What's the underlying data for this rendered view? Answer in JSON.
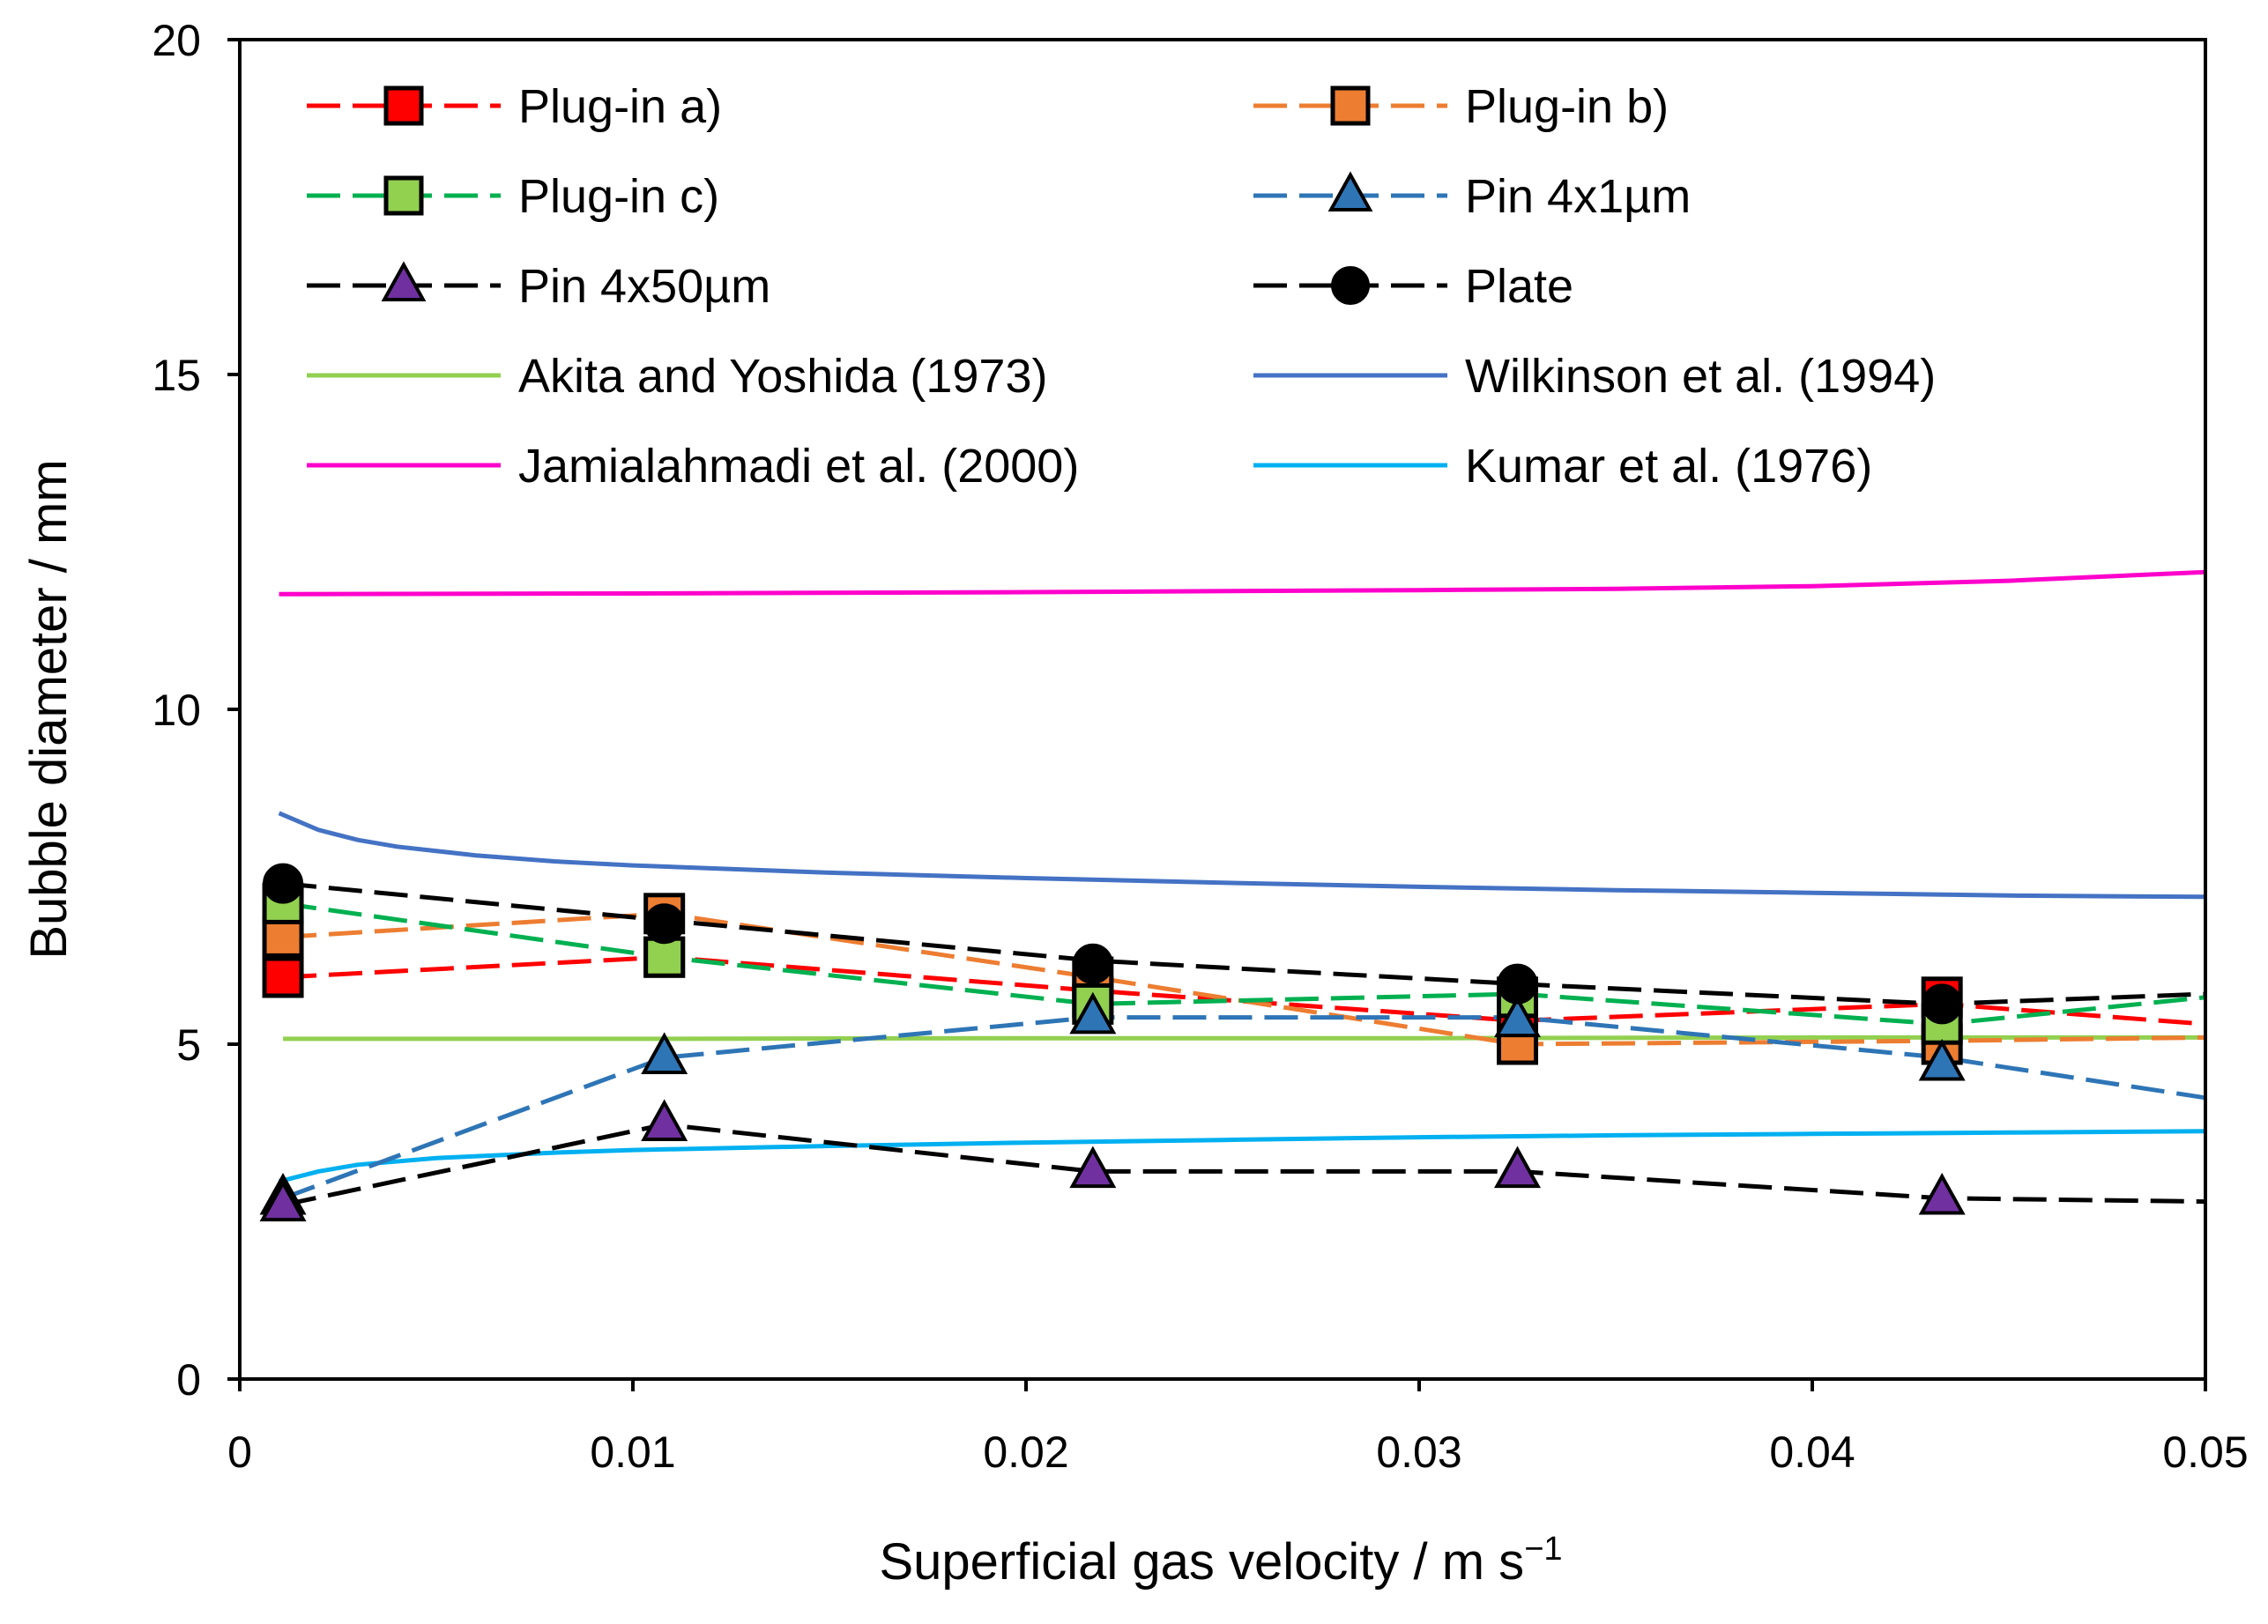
{
  "chart_data": {
    "type": "line",
    "title": "",
    "xlabel": "Superficial gas velocity / m s",
    "xlabel_sup": "−1",
    "ylabel": "Bubble diameter / mm",
    "xlim": [
      0,
      0.05
    ],
    "ylim": [
      0,
      20
    ],
    "xticks": [
      {
        "value": 0,
        "label": "0"
      },
      {
        "value": 0.01,
        "label": "0.01"
      },
      {
        "value": 0.02,
        "label": "0.02"
      },
      {
        "value": 0.03,
        "label": "0.03"
      },
      {
        "value": 0.04,
        "label": "0.04"
      },
      {
        "value": 0.05,
        "label": "0.05"
      }
    ],
    "yticks": [
      {
        "value": 0,
        "label": "0"
      },
      {
        "value": 5,
        "label": "5"
      },
      {
        "value": 10,
        "label": "10"
      },
      {
        "value": 15,
        "label": "15"
      },
      {
        "value": 20,
        "label": "20"
      }
    ],
    "grid": false,
    "legend_position": "top",
    "series": [
      {
        "name": "Plug-in a)",
        "kind": "marker-dashed",
        "marker": "square",
        "color": "#ff0000",
        "marker_fill": "#ff0000",
        "x": [
          0.0011,
          0.0108,
          0.0217,
          0.0325,
          0.0433
        ],
        "values": [
          6.0,
          6.3,
          5.7,
          5.3,
          5.7
        ],
        "line_x": [
          0.0011,
          0.0108,
          0.0217,
          0.0325,
          0.0433,
          0.05
        ],
        "line_values": [
          6.0,
          6.3,
          5.8,
          5.35,
          5.6,
          5.3
        ]
      },
      {
        "name": "Plug-in b)",
        "kind": "marker-dashed",
        "marker": "square",
        "color": "#ed7d31",
        "marker_fill": "#ed7d31",
        "x": [
          0.0011,
          0.0108,
          0.0217,
          0.0325,
          0.0433
        ],
        "values": [
          6.6,
          6.95,
          6.0,
          5.0,
          5.0
        ],
        "line_x": [
          0.0011,
          0.0108,
          0.0217,
          0.0325,
          0.0433,
          0.05
        ],
        "line_values": [
          6.6,
          6.95,
          6.0,
          5.0,
          5.05,
          5.1
        ]
      },
      {
        "name": "Plug-in c)",
        "kind": "marker-dashed",
        "marker": "square",
        "color": "#00b050",
        "marker_fill": "#92d050",
        "x": [
          0.0011,
          0.0108,
          0.0217,
          0.0325,
          0.0433
        ],
        "values": [
          7.1,
          6.3,
          5.6,
          5.7,
          5.3
        ],
        "line_x": [
          0.0011,
          0.0108,
          0.0217,
          0.0325,
          0.0433,
          0.05
        ],
        "line_values": [
          7.1,
          6.3,
          5.6,
          5.75,
          5.3,
          5.7
        ]
      },
      {
        "name": "Pin 4x1µm",
        "kind": "marker-dashed",
        "marker": "triangle",
        "color": "#2e75b6",
        "marker_fill": "#2e75b6",
        "x": [
          0.0011,
          0.0108,
          0.0217,
          0.0325,
          0.0433
        ],
        "values": [
          2.7,
          4.8,
          5.4,
          5.35,
          4.7
        ],
        "line_x": [
          0.0011,
          0.0108,
          0.0217,
          0.0325,
          0.0433,
          0.05
        ],
        "line_values": [
          2.7,
          4.8,
          5.4,
          5.4,
          4.8,
          4.2
        ]
      },
      {
        "name": "Pin 4x50µm",
        "kind": "marker-dashed",
        "marker": "triangle",
        "color": "#000000",
        "marker_fill": "#7030a0",
        "x": [
          0.0011,
          0.0108,
          0.0217,
          0.0325,
          0.0433
        ],
        "values": [
          2.6,
          3.8,
          3.1,
          3.1,
          2.7
        ],
        "line_x": [
          0.0011,
          0.0108,
          0.0217,
          0.0325,
          0.0433,
          0.05
        ],
        "line_values": [
          2.6,
          3.8,
          3.1,
          3.1,
          2.7,
          2.65
        ]
      },
      {
        "name": "Plate",
        "kind": "marker-dashed",
        "marker": "circle",
        "color": "#000000",
        "marker_fill": "#000000",
        "x": [
          0.0011,
          0.0108,
          0.0217,
          0.0325,
          0.0433
        ],
        "values": [
          7.4,
          6.8,
          6.2,
          5.9,
          5.6
        ],
        "line_x": [
          0.0011,
          0.0108,
          0.0217,
          0.0325,
          0.0433,
          0.05
        ],
        "line_values": [
          7.4,
          6.85,
          6.25,
          5.9,
          5.6,
          5.75
        ]
      },
      {
        "name": "Akita and Yoshida (1973)",
        "kind": "solid",
        "color": "#92d050",
        "x": [
          0.0011,
          0.01,
          0.02,
          0.03,
          0.04,
          0.05
        ],
        "values": [
          5.08,
          5.08,
          5.09,
          5.09,
          5.1,
          5.1
        ]
      },
      {
        "name": "Wilkinson et al. (1994)",
        "kind": "solid",
        "color": "#4472c4",
        "x": [
          0.001,
          0.002,
          0.003,
          0.004,
          0.006,
          0.008,
          0.01,
          0.015,
          0.02,
          0.025,
          0.03,
          0.035,
          0.04,
          0.045,
          0.05
        ],
        "values": [
          8.45,
          8.2,
          8.05,
          7.95,
          7.82,
          7.73,
          7.67,
          7.56,
          7.48,
          7.41,
          7.35,
          7.3,
          7.26,
          7.22,
          7.2
        ]
      },
      {
        "name": "Jamialahmadi et al. (2000)",
        "kind": "solid",
        "color": "#ff00cc",
        "x": [
          0.001,
          0.01,
          0.02,
          0.03,
          0.035,
          0.04,
          0.045,
          0.05
        ],
        "values": [
          11.72,
          11.73,
          11.75,
          11.78,
          11.8,
          11.84,
          11.92,
          12.05
        ]
      },
      {
        "name": "Kumar et al. (1976)",
        "kind": "solid",
        "color": "#00b0f0",
        "x": [
          0.001,
          0.002,
          0.003,
          0.005,
          0.008,
          0.01,
          0.015,
          0.02,
          0.025,
          0.03,
          0.035,
          0.04,
          0.045,
          0.05
        ],
        "values": [
          2.95,
          3.1,
          3.2,
          3.3,
          3.38,
          3.42,
          3.48,
          3.53,
          3.57,
          3.61,
          3.64,
          3.66,
          3.68,
          3.7
        ]
      }
    ]
  }
}
